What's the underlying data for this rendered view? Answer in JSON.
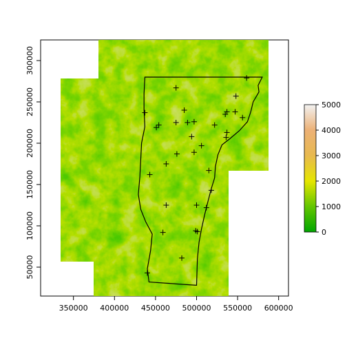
{
  "chart_data": {
    "type": "raster-map",
    "xlim": [
      310000,
      612000
    ],
    "ylim": [
      15000,
      325000
    ],
    "x_ticks": [
      350000,
      400000,
      450000,
      500000,
      550000,
      600000
    ],
    "y_ticks": [
      50000,
      100000,
      150000,
      200000,
      250000,
      300000
    ],
    "x_tick_labels": [
      "350000",
      "400000",
      "450000",
      "500000",
      "550000",
      "600000"
    ],
    "y_tick_labels": [
      "50000",
      "100000",
      "150000",
      "200000",
      "250000",
      "300000"
    ],
    "legend": {
      "values": [
        0,
        1000,
        2000,
        3000,
        4000,
        5000
      ],
      "labels": [
        "0",
        "1000",
        "2000",
        "3000",
        "4000",
        "5000"
      ],
      "colors": [
        "#00a600",
        "#63c600",
        "#e6e600",
        "#e8b94f",
        "#ecb176",
        "#f2f2f2"
      ]
    },
    "points": [
      [
        475000,
        267000
      ],
      [
        561000,
        279000
      ],
      [
        437000,
        237000
      ],
      [
        485000,
        240000
      ],
      [
        548000,
        257000
      ],
      [
        537000,
        238000
      ],
      [
        535000,
        235000
      ],
      [
        547000,
        238000
      ],
      [
        556000,
        231000
      ],
      [
        454000,
        222000
      ],
      [
        451000,
        219000
      ],
      [
        475000,
        225000
      ],
      [
        489000,
        225000
      ],
      [
        497000,
        226000
      ],
      [
        522000,
        222000
      ],
      [
        537000,
        213000
      ],
      [
        536000,
        207000
      ],
      [
        494000,
        208000
      ],
      [
        506000,
        197000
      ],
      [
        497000,
        189000
      ],
      [
        476000,
        187000
      ],
      [
        463000,
        175000
      ],
      [
        515000,
        167000
      ],
      [
        443000,
        162000
      ],
      [
        518000,
        143000
      ],
      [
        500000,
        125000
      ],
      [
        463000,
        125000
      ],
      [
        512000,
        122000
      ],
      [
        459000,
        92000
      ],
      [
        499000,
        94000
      ],
      [
        501000,
        93000
      ],
      [
        482000,
        61000
      ],
      [
        440000,
        43000
      ]
    ],
    "vermont_outline": [
      [
        437000,
        280000
      ],
      [
        580000,
        280000
      ],
      [
        575000,
        270000
      ],
      [
        576000,
        262000
      ],
      [
        569000,
        250000
      ],
      [
        566000,
        238000
      ],
      [
        562000,
        226000
      ],
      [
        552000,
        215000
      ],
      [
        540000,
        205000
      ],
      [
        531000,
        198000
      ],
      [
        526000,
        186000
      ],
      [
        523000,
        172000
      ],
      [
        522000,
        158000
      ],
      [
        518000,
        145000
      ],
      [
        514000,
        130000
      ],
      [
        510000,
        114000
      ],
      [
        506000,
        96000
      ],
      [
        503000,
        80000
      ],
      [
        501000,
        60000
      ],
      [
        500000,
        28000
      ],
      [
        442000,
        32000
      ],
      [
        440000,
        48000
      ],
      [
        444000,
        70000
      ],
      [
        446000,
        90000
      ],
      [
        438000,
        105000
      ],
      [
        432000,
        120000
      ],
      [
        429000,
        138000
      ],
      [
        431000,
        160000
      ],
      [
        432000,
        180000
      ],
      [
        433000,
        200000
      ],
      [
        437000,
        220000
      ],
      [
        436000,
        240000
      ],
      [
        436000,
        260000
      ],
      [
        437000,
        280000
      ]
    ]
  }
}
